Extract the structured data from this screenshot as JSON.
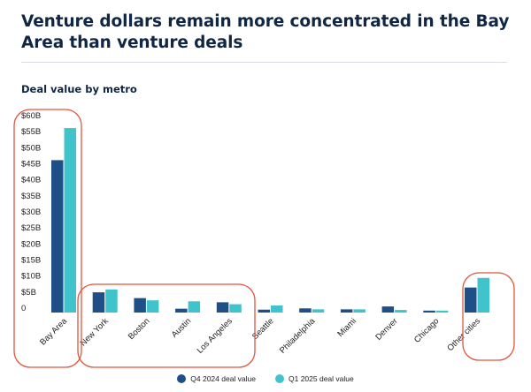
{
  "header": {
    "title": "Venture dollars remain more concentrated in the Bay Area than venture deals",
    "subtitle": "Deal value by metro"
  },
  "colors": {
    "q4": "#1e4f86",
    "q1": "#40c3cb",
    "highlight": "#e2553d"
  },
  "chart_data": {
    "type": "bar",
    "title": "Deal value by metro",
    "xlabel": "",
    "ylabel": "",
    "ylim": [
      0,
      60
    ],
    "grid": false,
    "legend_position": "bottom-center",
    "tick_labels": [
      "0",
      "$5B",
      "$10B",
      "$15B",
      "$20B",
      "$25B",
      "$30B",
      "$35B",
      "$40B",
      "$45B",
      "$50B",
      "$55B",
      "$60B"
    ],
    "categories": [
      "Bay Area",
      "New York",
      "Boston",
      "Austin",
      "Los Angeles",
      "Seattle",
      "Philadelphia",
      "Miami",
      "Denver",
      "Chicago",
      "Other cities"
    ],
    "series": [
      {
        "name": "Q4 2024 deal value",
        "values": [
          47.5,
          6.3,
          4.5,
          1.2,
          3.2,
          0.9,
          1.3,
          1.0,
          1.9,
          0.6,
          7.8
        ]
      },
      {
        "name": "Q1 2025 deal value",
        "values": [
          57.5,
          7.2,
          3.8,
          3.5,
          2.6,
          2.2,
          1.0,
          1.0,
          0.8,
          0.6,
          10.8
        ]
      }
    ],
    "highlighted_groups": [
      [
        "Bay Area"
      ],
      [
        "New York",
        "Boston",
        "Austin",
        "Los Angeles"
      ],
      [
        "Other cities"
      ]
    ]
  }
}
